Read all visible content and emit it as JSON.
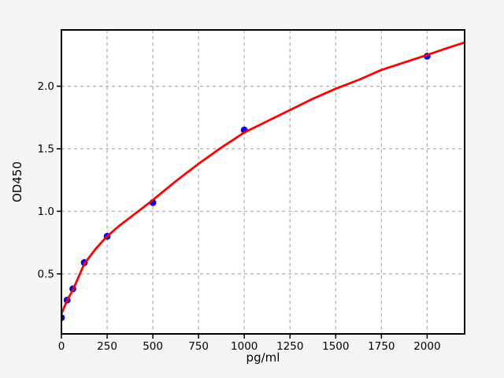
{
  "figure": {
    "background_color": "#f5f5f5",
    "plot_background_color": "#ffffff",
    "axis_color": "#000000"
  },
  "chart_data": {
    "type": "scatter",
    "title": "",
    "xlabel": "pg/ml",
    "ylabel": "OD450",
    "xlim": [
      0,
      2205
    ],
    "ylim": [
      0.02,
      2.45
    ],
    "xticks": {
      "values": [
        0,
        250,
        500,
        750,
        1000,
        1250,
        1500,
        1750,
        2000
      ],
      "labels": [
        "0",
        "250",
        "500",
        "750",
        "1000",
        "1250",
        "1500",
        "1750",
        "2000"
      ]
    },
    "yticks": {
      "values": [
        0.5,
        1.0,
        1.5,
        2.0
      ],
      "labels": [
        "0.5",
        "1.0",
        "1.5",
        "2.0"
      ]
    },
    "grid": {
      "show": true,
      "color": "#b0b0b0",
      "style": "dashed"
    },
    "legend": {
      "show": false
    },
    "series": [
      {
        "name": "standard-points",
        "type": "scatter",
        "color": "#0000ff",
        "marker": "circle",
        "marker_radius": 4.4,
        "points": [
          [
            0,
            0.15
          ],
          [
            31.25,
            0.29
          ],
          [
            62.5,
            0.38
          ],
          [
            125,
            0.59
          ],
          [
            250,
            0.8
          ],
          [
            500,
            1.07
          ],
          [
            1000,
            1.65
          ],
          [
            2000,
            2.24
          ]
        ]
      },
      {
        "name": "fitted-curve",
        "type": "line",
        "color": "#ff0000",
        "line_width": 2.8,
        "points": [
          [
            0,
            0.18
          ],
          [
            31.25,
            0.29
          ],
          [
            62.5,
            0.37
          ],
          [
            125,
            0.58
          ],
          [
            187.5,
            0.7
          ],
          [
            250,
            0.8
          ],
          [
            312.5,
            0.88
          ],
          [
            375,
            0.95
          ],
          [
            437.5,
            1.02
          ],
          [
            500,
            1.09
          ],
          [
            625,
            1.24
          ],
          [
            750,
            1.38
          ],
          [
            875,
            1.51
          ],
          [
            1000,
            1.63
          ],
          [
            1125,
            1.72
          ],
          [
            1250,
            1.81
          ],
          [
            1375,
            1.9
          ],
          [
            1500,
            1.98
          ],
          [
            1625,
            2.05
          ],
          [
            1750,
            2.13
          ],
          [
            1875,
            2.19
          ],
          [
            2000,
            2.25
          ],
          [
            2100,
            2.3
          ],
          [
            2205,
            2.35
          ]
        ]
      }
    ]
  }
}
